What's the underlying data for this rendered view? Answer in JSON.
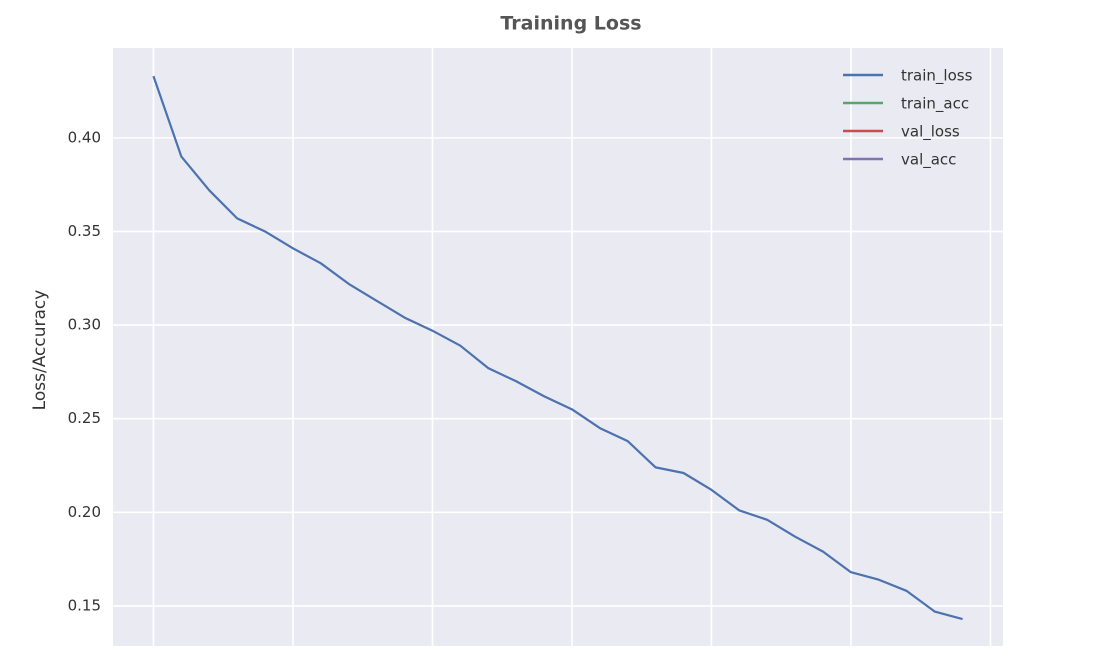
{
  "chart_data": {
    "type": "line",
    "title": "Training Loss",
    "y_label": "Loss/Accuracy",
    "x": [
      0,
      1,
      2,
      3,
      4,
      5,
      6,
      7,
      8,
      9,
      10,
      11,
      12,
      13,
      14,
      15,
      16,
      17,
      18,
      19,
      20,
      21,
      22,
      23,
      24,
      25,
      26,
      27,
      28,
      29
    ],
    "series": [
      {
        "name": "train_loss",
        "color": "#4c72b0",
        "values": [
          0.433,
          0.39,
          0.372,
          0.357,
          0.35,
          0.341,
          0.333,
          0.322,
          0.313,
          0.304,
          0.297,
          0.289,
          0.277,
          0.27,
          0.262,
          0.255,
          0.245,
          0.238,
          0.224,
          0.221,
          0.212,
          0.201,
          0.196,
          0.187,
          0.179,
          0.168,
          0.164,
          0.158,
          0.147,
          0.143
        ]
      },
      {
        "name": "train_acc",
        "color": "#55a868",
        "values": [
          null,
          null,
          null,
          null,
          null,
          null,
          null,
          null,
          null,
          null,
          null,
          null,
          null,
          null,
          null,
          null,
          null,
          null,
          null,
          null,
          null,
          null,
          null,
          null,
          null,
          null,
          null,
          null,
          null,
          null
        ]
      },
      {
        "name": "val_loss",
        "color": "#c44e52",
        "values": [
          null,
          null,
          null,
          null,
          null,
          null,
          null,
          null,
          null,
          null,
          null,
          null,
          null,
          null,
          null,
          null,
          null,
          null,
          null,
          null,
          null,
          null,
          null,
          null,
          null,
          null,
          null,
          null,
          null,
          null
        ]
      },
      {
        "name": "val_acc",
        "color": "#8172b2",
        "values": [
          null,
          null,
          null,
          null,
          null,
          null,
          null,
          null,
          null,
          null,
          null,
          null,
          null,
          null,
          null,
          null,
          null,
          null,
          null,
          null,
          null,
          null,
          null,
          null,
          null,
          null,
          null,
          null,
          null,
          null
        ]
      }
    ],
    "xlim": [
      -1.45,
      30.45
    ],
    "xticks": [
      0,
      5,
      10,
      15,
      20,
      25,
      30
    ],
    "ylim": [
      0.1286,
      0.448
    ],
    "yticks": [
      {
        "value": 0.15,
        "label": "0.15"
      },
      {
        "value": 0.2,
        "label": "0.20"
      },
      {
        "value": 0.25,
        "label": "0.25"
      },
      {
        "value": 0.3,
        "label": "0.30"
      },
      {
        "value": 0.35,
        "label": "0.35"
      },
      {
        "value": 0.4,
        "label": "0.40"
      }
    ],
    "grid": true,
    "legend": "upper right"
  }
}
